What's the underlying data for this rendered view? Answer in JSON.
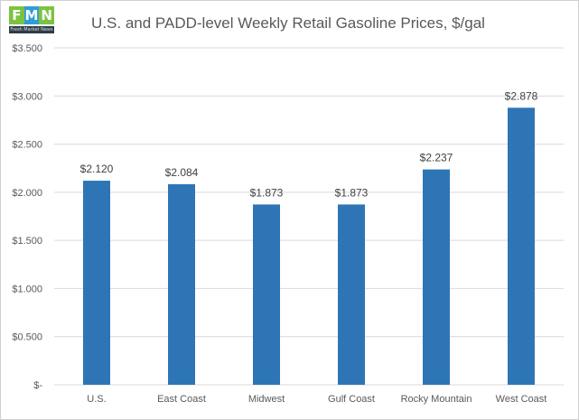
{
  "logo": {
    "letters": [
      {
        "char": "F",
        "color": "#7cc242"
      },
      {
        "char": "M",
        "color": "#2e9fd6"
      },
      {
        "char": "N",
        "color": "#7cc242"
      }
    ],
    "tagline": "Fresh Market News"
  },
  "chart_data": {
    "type": "bar",
    "title": "U.S. and PADD-level Weekly Retail Gasoline Prices, $/gal",
    "xlabel": "",
    "ylabel": "",
    "categories": [
      "U.S.",
      "East Coast",
      "Midwest",
      "Gulf Coast",
      "Rocky Mountain",
      "West Coast"
    ],
    "values": [
      2.12,
      2.084,
      1.873,
      1.873,
      2.237,
      2.878
    ],
    "data_labels": [
      "$2.120",
      "$2.084",
      "$1.873",
      "$1.873",
      "$2.237",
      "$2.878"
    ],
    "ylim": [
      0,
      3.5
    ],
    "yticks": [
      0,
      0.5,
      1.0,
      1.5,
      2.0,
      2.5,
      3.0,
      3.5
    ],
    "ytick_labels": [
      "$-",
      "$0.500",
      "$1.000",
      "$1.500",
      "$2.000",
      "$2.500",
      "$3.000",
      "$3.500"
    ],
    "grid": true,
    "legend": "none",
    "colors": {
      "bar": "#2e75b6",
      "grid": "#d9d9d9",
      "text": "#595959"
    }
  }
}
